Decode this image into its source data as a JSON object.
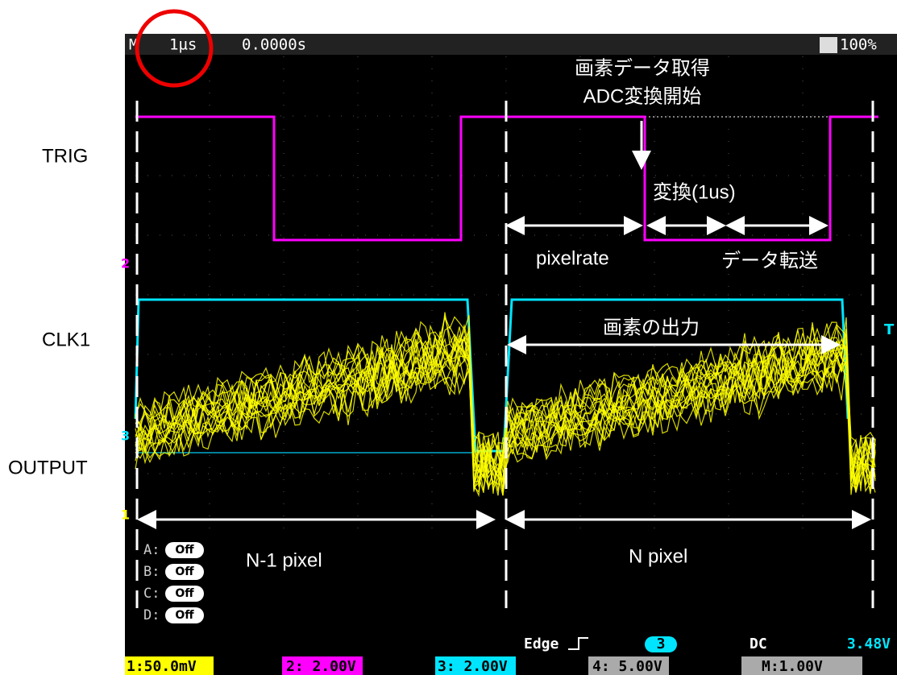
{
  "header": {
    "mode": "M",
    "timebase": "1µs",
    "position": "0.0000s",
    "battery": "100%"
  },
  "side_labels": [
    "TRIG",
    "CLK1",
    "OUTPUT"
  ],
  "channel_markers": {
    "ch2": "2",
    "ch3": "3",
    "ch1": "1",
    "trigger": "T"
  },
  "annotations": {
    "acquire": "画素データ取得",
    "adc_start": "ADC変換開始",
    "conversion": "変換(1us)",
    "pixelrate": "pixelrate",
    "transfer": "データ転送",
    "pixel_output": "画素の出力",
    "prev_pixel": "N-1 pixel",
    "this_pixel": "N pixel"
  },
  "menu": [
    {
      "key": "A:",
      "state": "Off"
    },
    {
      "key": "B:",
      "state": "Off"
    },
    {
      "key": "C:",
      "state": "Off"
    },
    {
      "key": "D:",
      "state": "Off"
    }
  ],
  "trigger": {
    "type": "Edge",
    "source": "3",
    "coupling": "DC",
    "level": "3.48V"
  },
  "scales": [
    "1:50.0mV",
    "2: 2.00V",
    "3: 2.00V",
    "4: 5.00V",
    "M:1.00V"
  ]
}
